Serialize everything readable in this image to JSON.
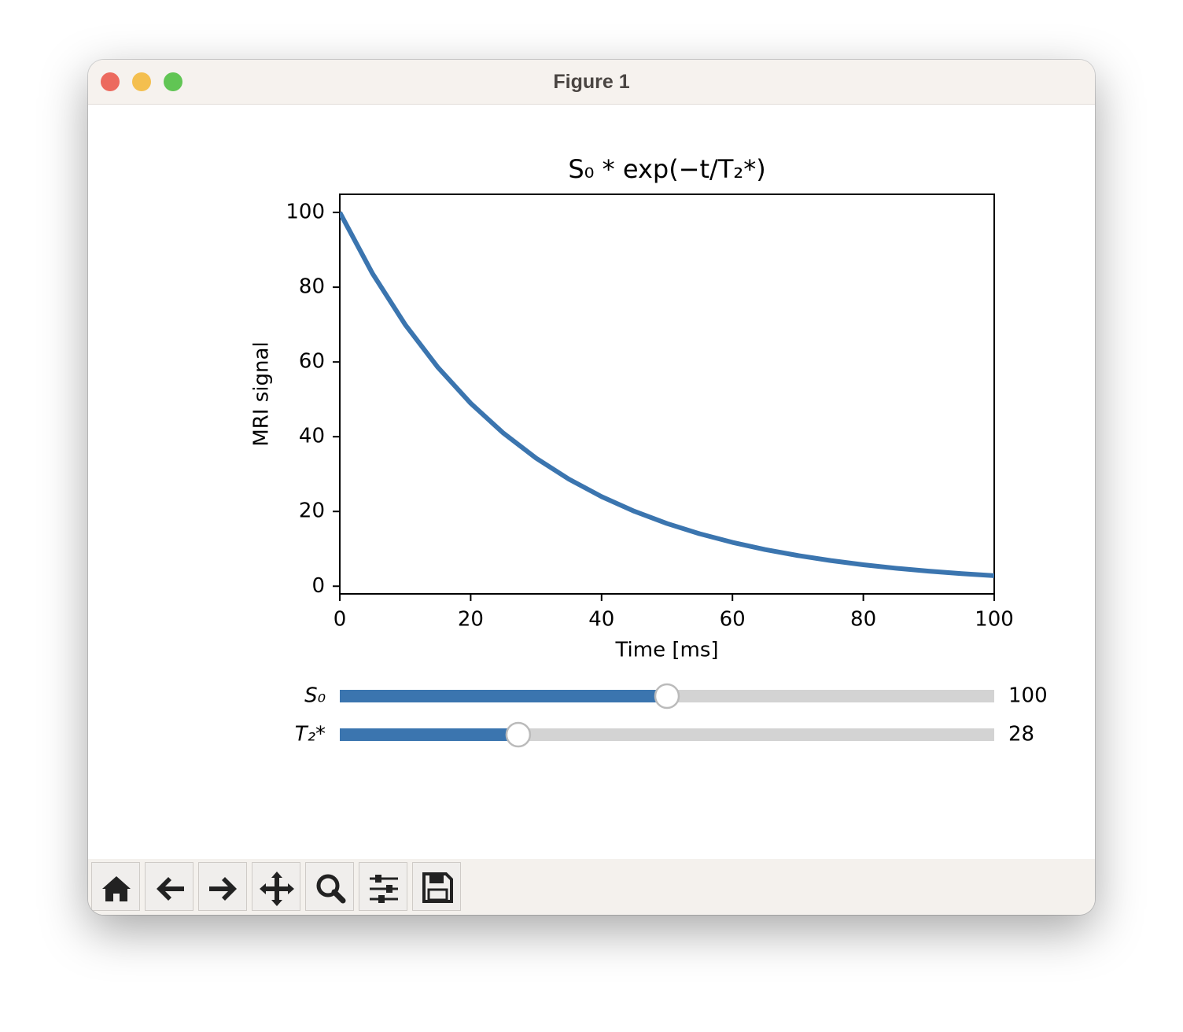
{
  "window": {
    "title": "Figure 1"
  },
  "chart_data": {
    "type": "line",
    "title": "S₀ * exp(−t/T₂*)",
    "x_label": "Time [ms]",
    "y_label": "MRI signal",
    "x": [
      0,
      5,
      10,
      15,
      20,
      25,
      30,
      35,
      40,
      45,
      50,
      55,
      60,
      65,
      70,
      75,
      80,
      85,
      90,
      95,
      100
    ],
    "values": [
      100,
      83.65,
      69.97,
      58.53,
      48.95,
      40.95,
      34.25,
      28.65,
      23.97,
      20.05,
      16.77,
      14.03,
      11.73,
      9.81,
      8.21,
      6.87,
      5.74,
      4.8,
      4.02,
      3.36,
      2.81
    ],
    "color": "#3b75af",
    "xlim": [
      0,
      100
    ],
    "xticks": [
      0,
      20,
      40,
      60,
      80,
      100
    ],
    "ylim": [
      -2.05,
      104.86
    ],
    "yticks": [
      0,
      20,
      40,
      60,
      80,
      100
    ]
  },
  "sliders": [
    {
      "label": "S₀",
      "value": 100,
      "range": [
        0,
        200
      ]
    },
    {
      "label": "T₂*",
      "value": 28,
      "range": [
        1,
        100
      ]
    }
  ]
}
